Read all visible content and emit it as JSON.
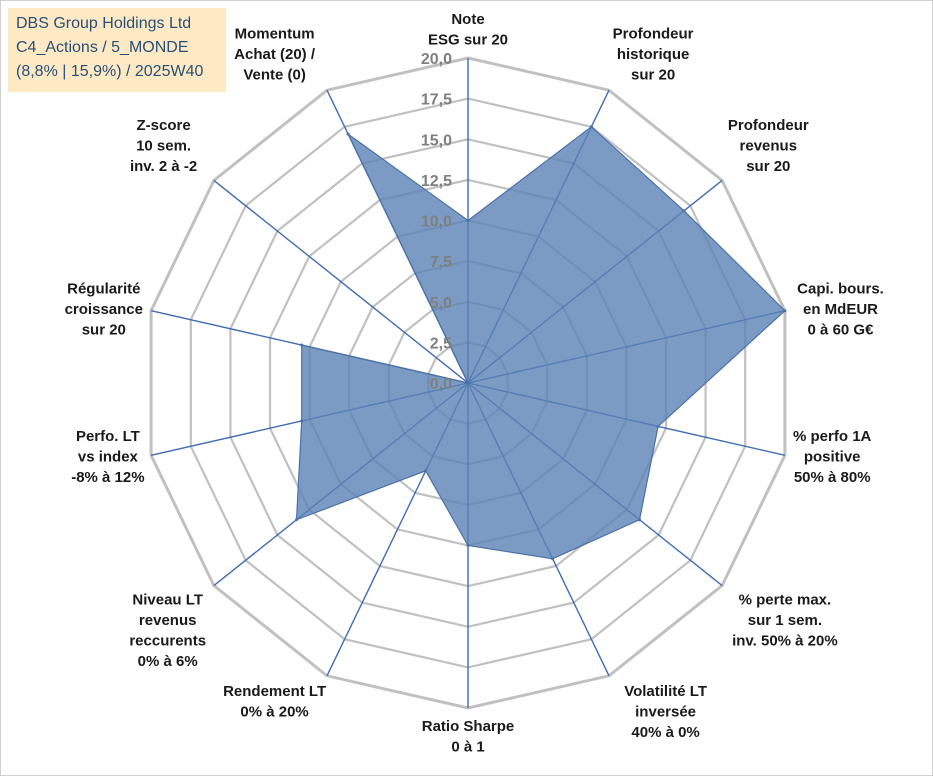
{
  "info_box": {
    "line1": "DBS Group Holdings Ltd",
    "line2": "C4_Actions / 5_MONDE",
    "line3": "(8,8% | 15,9%) / 2025W40"
  },
  "chart_data": {
    "type": "radar",
    "rmin": 0,
    "rmax": 20,
    "ticks": [
      "0,0",
      "2,5",
      "5,0",
      "7,5",
      "10,0",
      "12,5",
      "15,0",
      "17,5",
      "20,0"
    ],
    "axes": [
      {
        "lines": [
          "Note",
          "ESG sur 20"
        ]
      },
      {
        "lines": [
          "Profondeur",
          "historique",
          "sur 20"
        ]
      },
      {
        "lines": [
          "Profondeur",
          "revenus",
          "sur 20"
        ]
      },
      {
        "lines": [
          "Capi. bours.",
          "en MdEUR",
          "0 à 60 G€"
        ]
      },
      {
        "lines": [
          "% perfo 1A",
          "positive",
          "50% à 80%"
        ]
      },
      {
        "lines": [
          "% perte max.",
          "sur 1 sem.",
          "inv. 50% à 20%"
        ]
      },
      {
        "lines": [
          "Volatilité LT",
          "inversée",
          "40% à 0%"
        ]
      },
      {
        "lines": [
          "Ratio Sharpe",
          "0 à 1"
        ]
      },
      {
        "lines": [
          "Rendement LT",
          "0% à 20%"
        ]
      },
      {
        "lines": [
          "Niveau LT",
          "revenus",
          "reccurents",
          "0% à 6%"
        ]
      },
      {
        "lines": [
          "Perfo. LT",
          "vs index",
          "-8% à 12%"
        ]
      },
      {
        "lines": [
          "Régularité",
          "croissance",
          "sur 20"
        ]
      },
      {
        "lines": [
          "Z-score",
          "10 sem.",
          "inv. 2 à -2"
        ]
      },
      {
        "lines": [
          "Momentum",
          "Achat (20) /",
          "Vente (0)"
        ]
      }
    ],
    "series": [
      {
        "values": [
          10.0,
          17.5,
          17.0,
          20.0,
          12.0,
          13.5,
          12.0,
          10.0,
          6.0,
          13.5,
          10.5,
          10.5,
          0.0,
          17.0
        ]
      }
    ],
    "colors": {
      "fill": "#5b82b5",
      "fill_opacity": 0.8,
      "line": "#4a72a8",
      "grid": "#c0c0c0",
      "spoke": "#3f6db0"
    },
    "grid": true,
    "legend": "none"
  }
}
